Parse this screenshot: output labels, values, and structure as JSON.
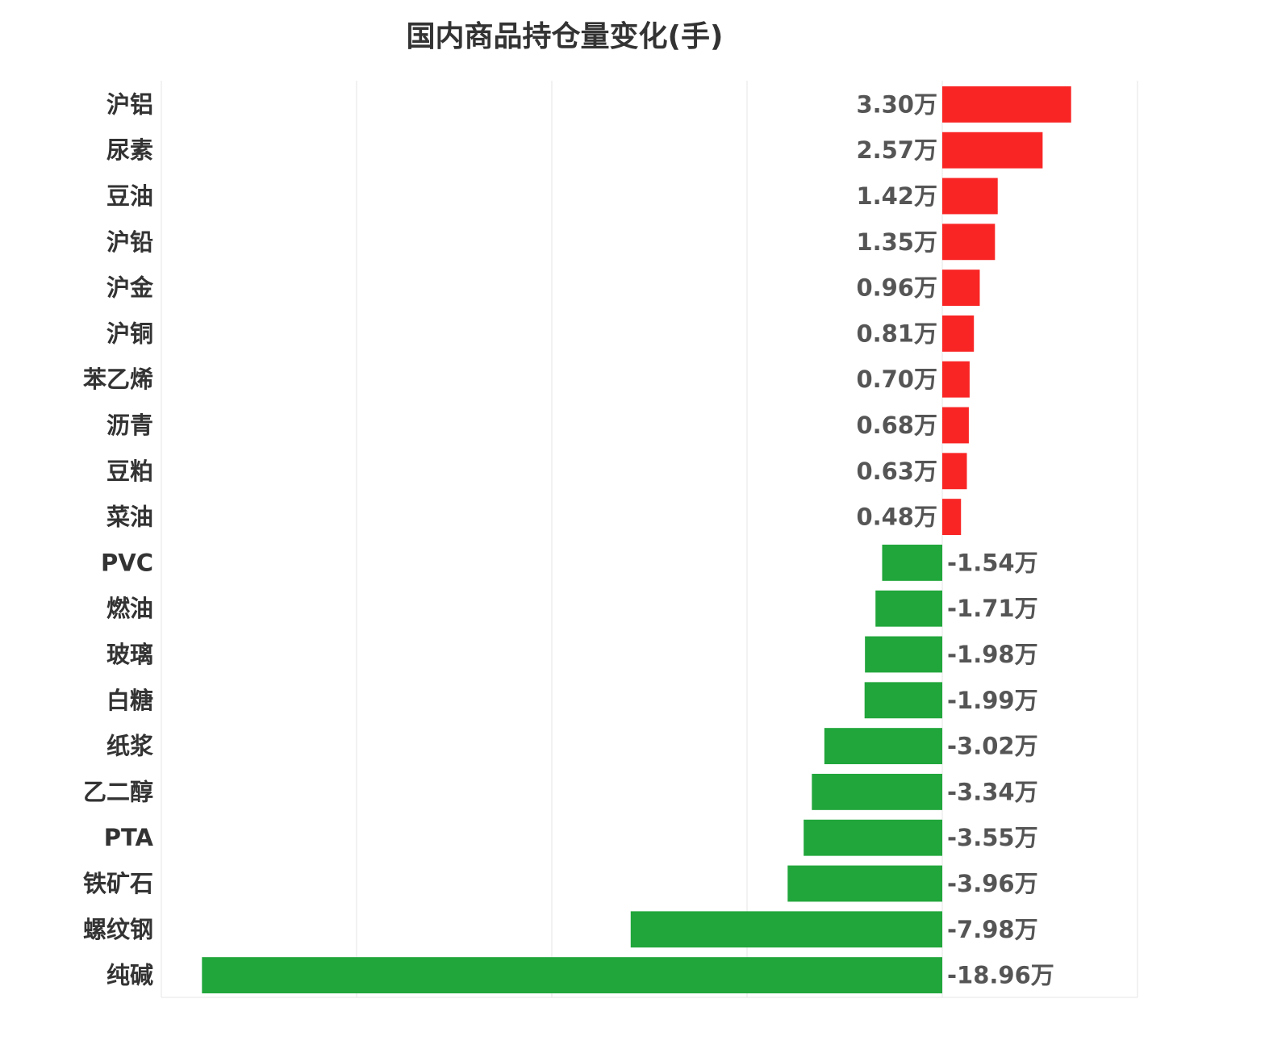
{
  "chart_data": {
    "type": "bar",
    "orientation": "horizontal",
    "title": "国内商品持仓量变化(手)",
    "unit_suffix": "万",
    "categories": [
      "沪铝",
      "尿素",
      "豆油",
      "沪铅",
      "沪金",
      "沪铜",
      "苯乙烯",
      "沥青",
      "豆粕",
      "菜油",
      "PVC",
      "燃油",
      "玻璃",
      "白糖",
      "纸浆",
      "乙二醇",
      "PTA",
      "铁矿石",
      "螺纹钢",
      "纯碱"
    ],
    "values": [
      3.3,
      2.57,
      1.42,
      1.35,
      0.96,
      0.81,
      0.7,
      0.68,
      0.63,
      0.48,
      -1.54,
      -1.71,
      -1.98,
      -1.99,
      -3.02,
      -3.34,
      -3.55,
      -3.96,
      -7.98,
      -18.96
    ],
    "data_labels": [
      "3.30万",
      "2.57万",
      "1.42万",
      "1.35万",
      "0.96万",
      "0.81万",
      "0.70万",
      "0.68万",
      "0.63万",
      "0.48万",
      "-1.54万",
      "-1.71万",
      "-1.98万",
      "-1.99万",
      "-3.02万",
      "-3.34万",
      "-3.55万",
      "-3.96万",
      "-7.98万",
      "-18.96万"
    ],
    "xlim": [
      -20,
      5
    ],
    "grid_step": 5,
    "grid": true,
    "colors": {
      "positive": "#f92525",
      "negative": "#21a63b",
      "grid": "#e6e6e6"
    }
  }
}
